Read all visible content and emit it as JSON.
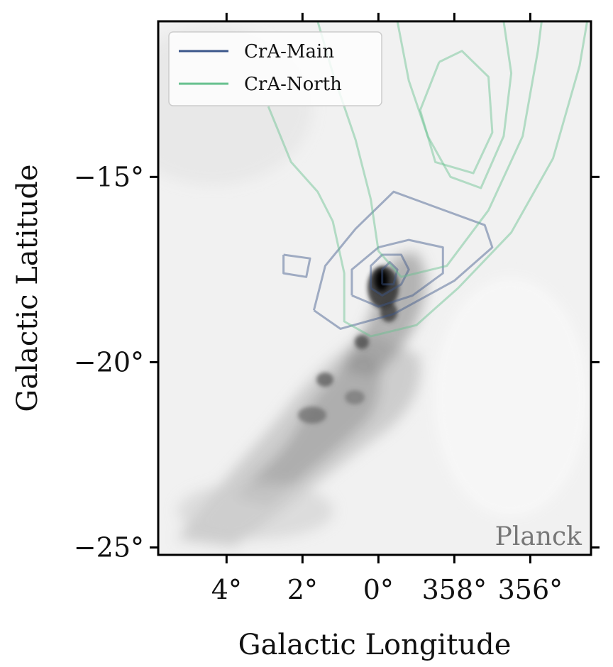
{
  "chart_data": {
    "type": "contour",
    "xlabel": "Galactic Longitude",
    "ylabel": "Galactic Latitude",
    "x_axis": {
      "units": "deg",
      "orientation": "increasing-left",
      "range": [
        5.8,
        -5.6
      ],
      "ticks": [
        4,
        2,
        0,
        358,
        356
      ],
      "tick_labels": [
        "4°",
        "2°",
        "0°",
        "358°",
        "356°"
      ]
    },
    "y_axis": {
      "units": "deg",
      "range": [
        -25.2,
        -10.8
      ],
      "ticks": [
        -15,
        -20,
        -25
      ],
      "tick_labels": [
        "−15°",
        "−20°",
        "−25°"
      ]
    },
    "background_map": {
      "survey": "Planck",
      "colormap": "grayscale"
    },
    "legend": {
      "placement": "top-left",
      "entries": [
        {
          "label": "CrA-Main",
          "color": "#3b568a"
        },
        {
          "label": "CrA-North",
          "color": "#66c08e"
        }
      ]
    },
    "series": [
      {
        "name": "CrA-Main",
        "color": "#3b568a",
        "contours": [
          [
            [
              1.7,
              -18.6
            ],
            [
              1.4,
              -17.4
            ],
            [
              0.6,
              -16.4
            ],
            [
              -0.4,
              -15.4
            ],
            [
              -1.2,
              -15.7
            ],
            [
              -2.8,
              -16.3
            ],
            [
              -3.0,
              -16.9
            ],
            [
              -2.0,
              -17.8
            ],
            [
              -0.4,
              -18.7
            ],
            [
              1.0,
              -19.1
            ],
            [
              1.7,
              -18.6
            ]
          ],
          [
            [
              0.7,
              -18.2
            ],
            [
              0.7,
              -17.5
            ],
            [
              0.0,
              -16.9
            ],
            [
              -0.8,
              -16.7
            ],
            [
              -1.7,
              -16.9
            ],
            [
              -1.7,
              -17.6
            ],
            [
              -0.9,
              -18.2
            ],
            [
              0.0,
              -18.5
            ],
            [
              0.7,
              -18.2
            ]
          ],
          [
            [
              0.2,
              -18.0
            ],
            [
              0.2,
              -17.4
            ],
            [
              -0.1,
              -17.1
            ],
            [
              -0.6,
              -17.1
            ],
            [
              -0.8,
              -17.5
            ],
            [
              -0.6,
              -17.9
            ],
            [
              -0.1,
              -18.2
            ],
            [
              0.2,
              -18.0
            ]
          ],
          [
            [
              -0.1,
              -17.9
            ],
            [
              -0.1,
              -17.5
            ],
            [
              -0.3,
              -17.3
            ],
            [
              -0.5,
              -17.5
            ],
            [
              -0.4,
              -17.9
            ],
            [
              -0.1,
              -17.9
            ]
          ],
          [
            [
              2.5,
              -17.1
            ],
            [
              1.8,
              -17.2
            ],
            [
              1.9,
              -17.7
            ],
            [
              2.5,
              -17.6
            ],
            [
              2.5,
              -17.1
            ]
          ]
        ]
      },
      {
        "name": "CrA-North",
        "color": "#66c08e",
        "contours": [
          [
            [
              2.9,
              -13.1
            ],
            [
              2.3,
              -14.6
            ],
            [
              1.6,
              -15.4
            ],
            [
              1.2,
              -16.2
            ],
            [
              0.9,
              -17.6
            ],
            [
              0.9,
              -18.9
            ],
            [
              0.2,
              -19.3
            ],
            [
              -1.0,
              -19.0
            ],
            [
              -2.1,
              -18.0
            ],
            [
              -3.5,
              -16.5
            ],
            [
              -4.6,
              -14.5
            ],
            [
              -5.3,
              -12.0
            ],
            [
              -5.5,
              -10.8
            ]
          ],
          [
            [
              1.6,
              -10.8
            ],
            [
              1.2,
              -12.2
            ],
            [
              0.6,
              -14.0
            ],
            [
              0.2,
              -15.6
            ],
            [
              0.0,
              -17.0
            ],
            [
              -0.6,
              -17.7
            ],
            [
              -1.8,
              -17.4
            ],
            [
              -2.9,
              -15.9
            ],
            [
              -3.8,
              -13.9
            ],
            [
              -4.2,
              -11.6
            ],
            [
              -4.3,
              -10.8
            ]
          ],
          [
            [
              -0.5,
              -10.8
            ],
            [
              -0.8,
              -12.4
            ],
            [
              -1.3,
              -13.9
            ],
            [
              -1.9,
              -15.0
            ],
            [
              -2.7,
              -15.3
            ],
            [
              -3.3,
              -13.9
            ],
            [
              -3.5,
              -12.2
            ],
            [
              -3.3,
              -10.8
            ]
          ],
          [
            [
              -1.6,
              -11.9
            ],
            [
              -1.1,
              -13.2
            ],
            [
              -1.5,
              -14.6
            ],
            [
              -2.5,
              -14.9
            ],
            [
              -3.0,
              -13.8
            ],
            [
              -2.9,
              -12.3
            ],
            [
              -2.2,
              -11.6
            ],
            [
              -1.6,
              -11.9
            ]
          ]
        ]
      }
    ]
  }
}
